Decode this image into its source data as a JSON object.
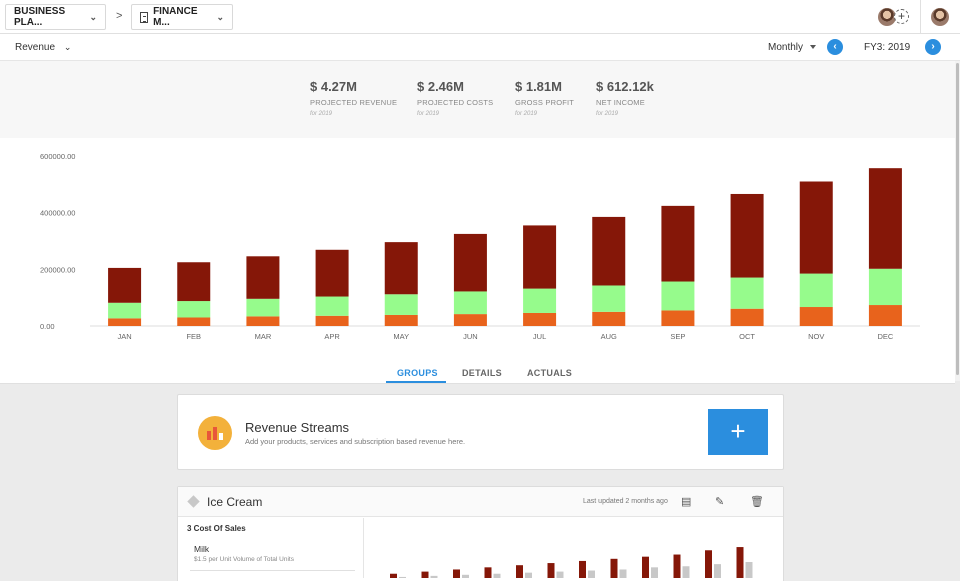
{
  "breadcrumbs": {
    "plan": "BUSINESS PLA...",
    "separator": ">",
    "finance": "FINANCE M..."
  },
  "subbar": {
    "view": "Revenue",
    "period": "Monthly",
    "fiscal_year": "FY3: 2019",
    "prev_icon": "‹",
    "next_icon": "›"
  },
  "summary": [
    {
      "value": "$ 4.27M",
      "label": "PROJECTED REVENUE",
      "sub": "for 2019"
    },
    {
      "value": "$ 2.46M",
      "label": "PROJECTED COSTS",
      "sub": "for 2019"
    },
    {
      "value": "$ 1.81M",
      "label": "GROSS PROFIT",
      "sub": "for 2019"
    },
    {
      "value": "$ 612.12k",
      "label": "NET INCOME",
      "sub": "for 2019"
    }
  ],
  "colors": {
    "accent": "#2b8ede",
    "series_orange": "#e8631c",
    "series_green": "#96fb8c",
    "series_darkred": "#851708"
  },
  "chart_data": {
    "type": "bar",
    "stacked": true,
    "categories": [
      "JAN",
      "FEB",
      "MAR",
      "APR",
      "MAY",
      "JUN",
      "JUL",
      "AUG",
      "SEP",
      "OCT",
      "NOV",
      "DEC"
    ],
    "ylim": [
      0,
      600000
    ],
    "yticks": [
      "0.00",
      "200000.00",
      "400000.00",
      "600000.00"
    ],
    "ytick_values": [
      0,
      200000,
      400000,
      600000
    ],
    "grid": false,
    "series": [
      {
        "values": [
          27000,
          30000,
          34000,
          36000,
          39000,
          42000,
          46000,
          50000,
          55000,
          61000,
          67000,
          74000
        ]
      },
      {
        "values": [
          55000,
          58000,
          62000,
          68000,
          73000,
          80000,
          86000,
          93000,
          102000,
          110000,
          118000,
          128000
        ]
      },
      {
        "values": [
          123000,
          137000,
          150000,
          165000,
          184000,
          203000,
          223000,
          242000,
          267000,
          295000,
          325000,
          355000
        ]
      }
    ]
  },
  "tabs": [
    "GROUPS",
    "DETAILS",
    "ACTUALS"
  ],
  "revenue_streams": {
    "title": "Revenue Streams",
    "description": "Add your products, services and subscription based revenue here.",
    "add_label": "+"
  },
  "ice_cream": {
    "title": "Ice Cream",
    "updated": "Last updated 2 months ago",
    "section": "3 Cost Of Sales",
    "item_name": "Milk",
    "item_desc": "$1.5 per Unit Volume of Total Units",
    "mini_chart": {
      "type": "bar",
      "series": [
        {
          "values": [
            4,
            6,
            8,
            10,
            12,
            14,
            16,
            18,
            20,
            22,
            26,
            29
          ]
        },
        {
          "values": [
            1,
            2,
            3,
            4,
            5,
            6,
            7,
            8,
            10,
            11,
            13,
            15
          ]
        }
      ]
    }
  }
}
